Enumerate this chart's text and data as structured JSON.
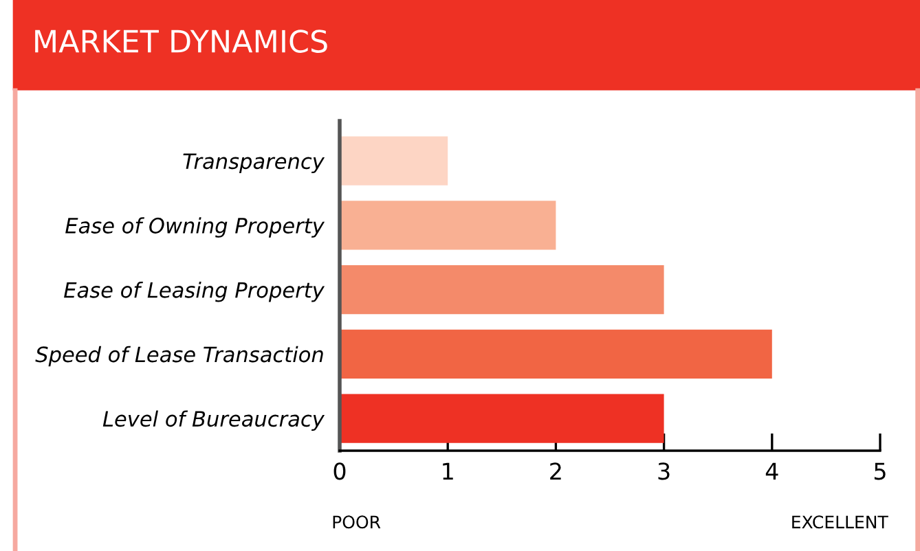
{
  "chart_data": {
    "type": "bar",
    "orientation": "horizontal",
    "title": "MARKET DYNAMICS",
    "categories": [
      "Transparency",
      "Ease of Owning Property",
      "Ease of Leasing Property",
      "Speed of Lease Transaction",
      "Level of Bureaucracy"
    ],
    "values": [
      1,
      2,
      3,
      4,
      3
    ],
    "colors": [
      "#fdd5c4",
      "#f9b093",
      "#f48a6a",
      "#f16544",
      "#ee3124"
    ],
    "xlim": [
      0,
      5
    ],
    "xticks": [
      0,
      1,
      2,
      3,
      4,
      5
    ],
    "grid": false,
    "legend": false,
    "annotations": [
      "POOR",
      "EXCELLENT"
    ]
  }
}
